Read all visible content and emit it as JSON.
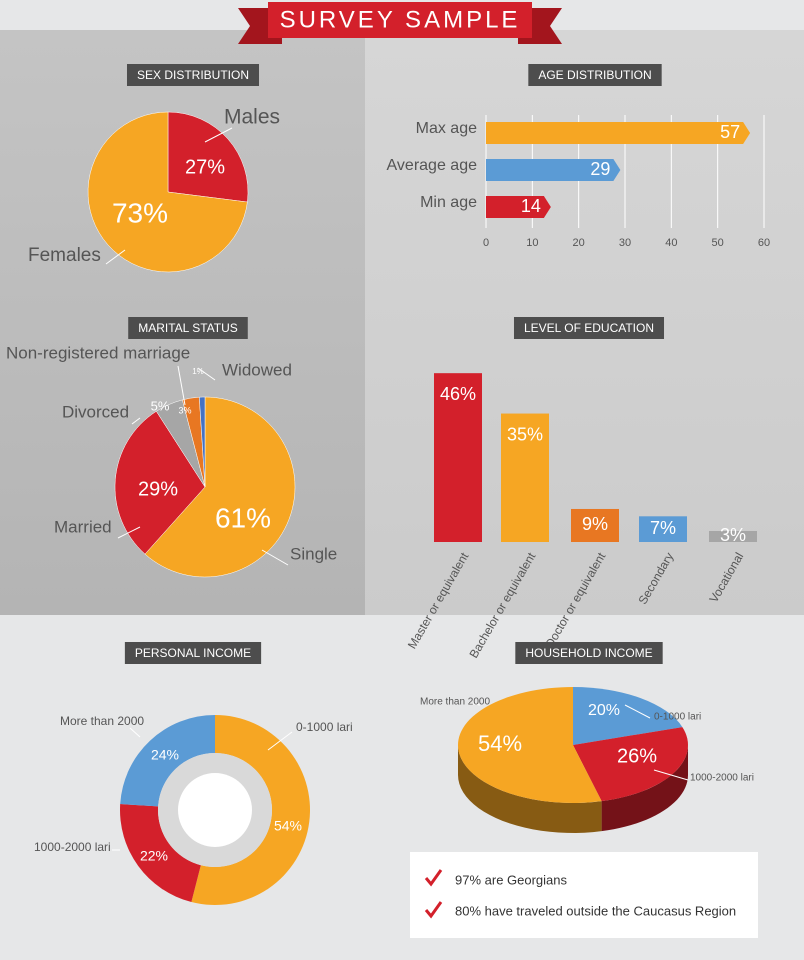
{
  "title": "SURVEY SAMPLE",
  "chart_data": [
    {
      "type": "pie",
      "title": "SEX DISTRIBUTION",
      "categories": [
        "Males",
        "Females"
      ],
      "values": [
        27,
        73
      ],
      "value_labels": [
        "27%",
        "73%"
      ],
      "colors": [
        "#d3202b",
        "#f6a623"
      ]
    },
    {
      "type": "hbar",
      "title": "AGE DISTRIBUTION",
      "categories": [
        "Max age",
        "Average age",
        "Min age"
      ],
      "values": [
        57,
        29,
        14
      ],
      "colors": [
        "#f6a623",
        "#5b9bd5",
        "#d3202b"
      ],
      "xlim": [
        0,
        60
      ],
      "xticks": [
        0,
        10,
        20,
        30,
        40,
        50,
        60
      ],
      "grid": true
    },
    {
      "type": "pie",
      "title": "MARITAL STATUS",
      "categories": [
        "Single",
        "Married",
        "Divorced",
        "Non-registered marriage",
        "Widowed"
      ],
      "values": [
        61,
        29,
        5,
        3,
        1
      ],
      "value_labels": [
        "61%",
        "29%",
        "5%",
        "3%",
        "1%"
      ],
      "colors": [
        "#f6a623",
        "#d3202b",
        "#a6a6a6",
        "#e87722",
        "#4472c4"
      ]
    },
    {
      "type": "bar",
      "title": "LEVEL OF EDUCATION",
      "categories": [
        "Master or equivalent",
        "Bachelor or equivalent",
        "Doctor or equivalent",
        "Secondary",
        "Vocational"
      ],
      "values": [
        46,
        35,
        9,
        7,
        3
      ],
      "value_labels": [
        "46%",
        "35%",
        "9%",
        "7%",
        "3%"
      ],
      "colors": [
        "#d3202b",
        "#f6a623",
        "#e87722",
        "#5b9bd5",
        "#a6a6a6"
      ]
    },
    {
      "type": "donut",
      "title": "PERSONAL INCOME",
      "categories": [
        "0-1000 lari",
        "1000-2000 lari",
        "More than 2000"
      ],
      "values": [
        54,
        22,
        24
      ],
      "value_labels": [
        "54%",
        "22%",
        "24%"
      ],
      "colors": [
        "#f6a623",
        "#d3202b",
        "#5b9bd5"
      ]
    },
    {
      "type": "pie3d",
      "title": "HOUSEHOLD INCOME",
      "categories": [
        "0-1000 lari",
        "1000-2000 lari",
        "More than 2000"
      ],
      "values": [
        20,
        26,
        54
      ],
      "value_labels": [
        "20%",
        "26%",
        "54%"
      ],
      "colors": [
        "#5b9bd5",
        "#d3202b",
        "#f6a623"
      ]
    }
  ],
  "notes": [
    "97% are Georgians",
    "80% have traveled outside the Caucasus Region"
  ]
}
